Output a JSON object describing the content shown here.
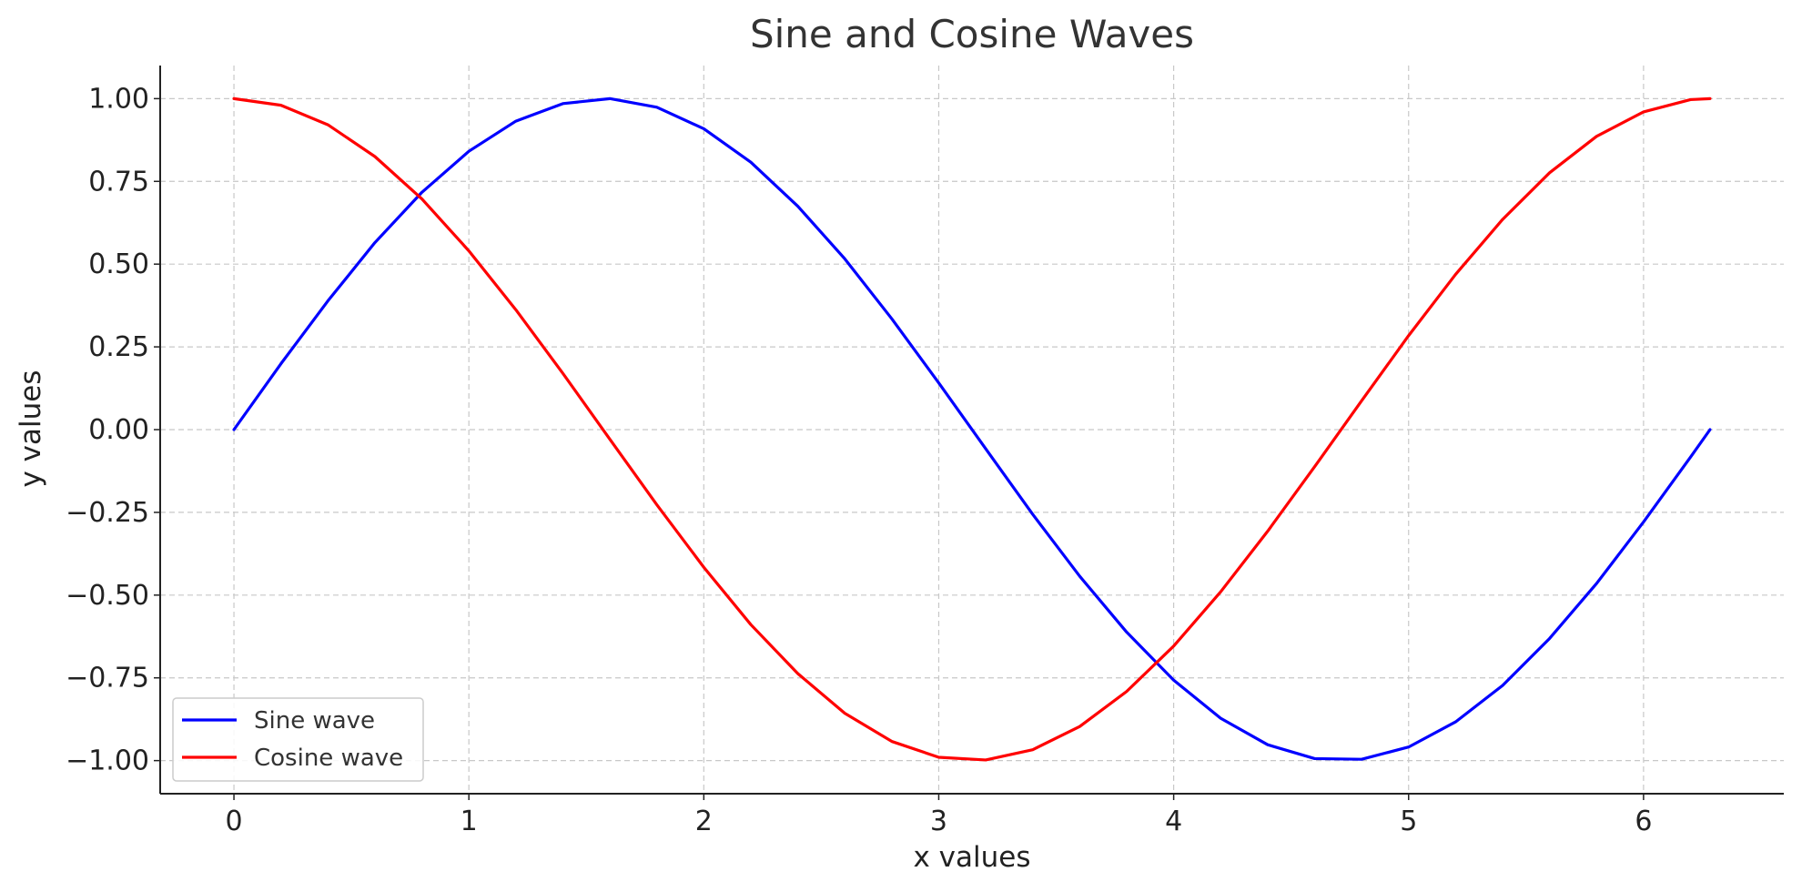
{
  "chart_data": {
    "type": "line",
    "title": "Sine and Cosine Waves",
    "xlabel": "x values",
    "ylabel": "y values",
    "xlim": [
      -0.314,
      6.597
    ],
    "ylim": [
      -1.1,
      1.1
    ],
    "x_ticks": [
      0,
      1,
      2,
      3,
      4,
      5,
      6
    ],
    "x_tick_labels": [
      "0",
      "1",
      "2",
      "3",
      "4",
      "5",
      "6"
    ],
    "y_ticks": [
      1.0,
      0.75,
      0.5,
      0.25,
      0.0,
      -0.25,
      -0.5,
      -0.75,
      -1.0
    ],
    "y_tick_labels": [
      "1.00",
      "0.75",
      "0.50",
      "0.25",
      "0.00",
      "−0.25",
      "−0.50",
      "−0.75",
      "−1.00"
    ],
    "grid": true,
    "legend_position": "lower-left",
    "x": [
      0,
      0.2,
      0.4,
      0.6,
      0.8,
      1.0,
      1.2,
      1.4,
      1.6,
      1.8,
      2.0,
      2.2,
      2.4,
      2.6,
      2.8,
      3.0,
      3.2,
      3.4,
      3.6,
      3.8,
      4.0,
      4.2,
      4.4,
      4.6,
      4.8,
      5.0,
      5.2,
      5.4,
      5.6,
      5.8,
      6.0,
      6.2,
      6.283
    ],
    "series": [
      {
        "name": "Sine wave",
        "color": "#0000ff",
        "values": [
          0.0,
          0.199,
          0.389,
          0.565,
          0.717,
          0.841,
          0.932,
          0.985,
          1.0,
          0.974,
          0.909,
          0.808,
          0.675,
          0.516,
          0.335,
          0.141,
          -0.058,
          -0.256,
          -0.443,
          -0.612,
          -0.757,
          -0.872,
          -0.952,
          -0.994,
          -0.996,
          -0.959,
          -0.883,
          -0.773,
          -0.631,
          -0.465,
          -0.279,
          -0.083,
          0.0
        ]
      },
      {
        "name": "Cosine wave",
        "color": "#ff0000",
        "values": [
          1.0,
          0.98,
          0.921,
          0.825,
          0.697,
          0.54,
          0.362,
          0.17,
          -0.029,
          -0.227,
          -0.416,
          -0.589,
          -0.737,
          -0.857,
          -0.942,
          -0.99,
          -0.998,
          -0.967,
          -0.897,
          -0.791,
          -0.654,
          -0.49,
          -0.307,
          -0.112,
          0.087,
          0.284,
          0.469,
          0.635,
          0.776,
          0.886,
          0.96,
          0.997,
          1.0
        ]
      }
    ]
  }
}
